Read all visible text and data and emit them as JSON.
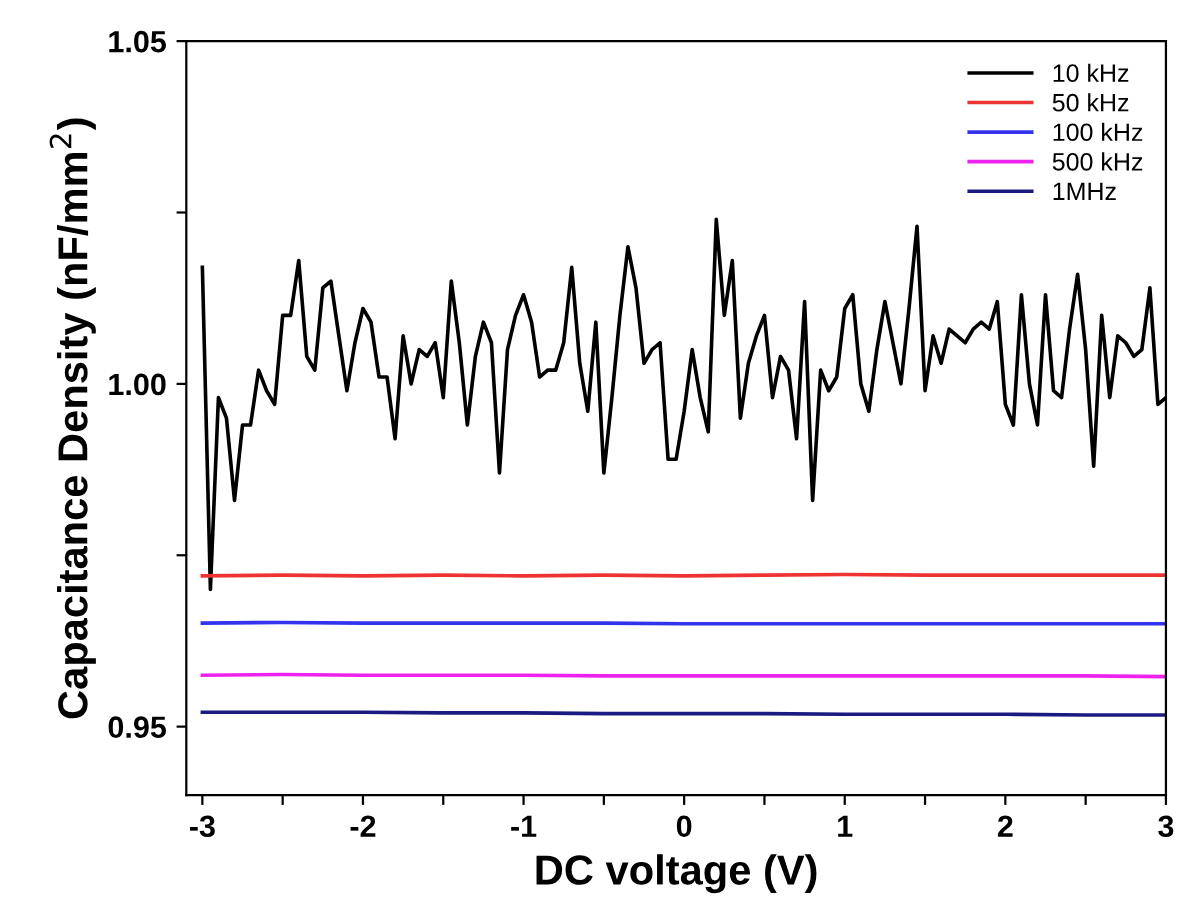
{
  "chart_data": {
    "type": "line",
    "xlabel": "DC voltage (V)",
    "ylabel": "Capacitance Density (nF/mm$^{2}$)",
    "xlim": [
      -3.1,
      3
    ],
    "ylim": [
      0.94,
      1.05
    ],
    "xticks": [
      -3,
      {
        "value": -2.5,
        "label": null
      },
      -2,
      {
        "value": -1.5,
        "label": null
      },
      -1,
      {
        "value": -0.5,
        "label": null
      },
      0,
      {
        "value": 0.5,
        "label": null
      },
      1,
      {
        "value": 1.5,
        "label": null
      },
      2,
      {
        "value": 2.5,
        "label": null
      },
      3
    ],
    "yticks": [
      {
        "value": 0.95,
        "label": "0.95"
      },
      {
        "value": 0.975,
        "label": null
      },
      {
        "value": 1.0,
        "label": "1.00"
      },
      {
        "value": 1.025,
        "label": null
      },
      {
        "value": 1.05,
        "label": "1.05"
      }
    ],
    "legend": "top right",
    "grid": false,
    "marker": "none",
    "line_style": "solid",
    "series": [
      {
        "name": "10 kHz",
        "color": "#000000",
        "x": [
          -3.0,
          -2.95,
          -2.9,
          -2.85,
          -2.8,
          -2.75,
          -2.7,
          -2.65,
          -2.6,
          -2.55,
          -2.5,
          -2.45,
          -2.4,
          -2.35,
          -2.3,
          -2.25,
          -2.2,
          -2.15,
          -2.1,
          -2.05,
          -2.0,
          -1.95,
          -1.9,
          -1.85,
          -1.8,
          -1.75,
          -1.7,
          -1.65,
          -1.6,
          -1.55,
          -1.5,
          -1.45,
          -1.4,
          -1.35,
          -1.3,
          -1.25,
          -1.2,
          -1.15,
          -1.1,
          -1.05,
          -1.0,
          -0.95,
          -0.9,
          -0.85,
          -0.8,
          -0.75,
          -0.7,
          -0.65,
          -0.6,
          -0.55,
          -0.5,
          -0.45,
          -0.4,
          -0.35,
          -0.3,
          -0.25,
          -0.2,
          -0.15,
          -0.1,
          -0.05,
          0.0,
          0.05,
          0.1,
          0.15,
          0.2,
          0.25,
          0.3,
          0.35,
          0.4,
          0.45,
          0.5,
          0.55,
          0.6,
          0.65,
          0.7,
          0.75,
          0.8,
          0.85,
          0.9,
          0.95,
          1.0,
          1.05,
          1.1,
          1.15,
          1.2,
          1.25,
          1.3,
          1.35,
          1.4,
          1.45,
          1.5,
          1.55,
          1.6,
          1.65,
          1.7,
          1.75,
          1.8,
          1.85,
          1.9,
          1.95,
          2.0,
          2.05,
          2.1,
          2.15,
          2.2,
          2.25,
          2.3,
          2.35,
          2.4,
          2.45,
          2.5,
          2.55,
          2.6,
          2.65,
          2.7,
          2.75,
          2.8,
          2.85,
          2.9,
          2.95,
          3.0
        ],
        "values": [
          1.017,
          0.97,
          0.998,
          0.995,
          0.983,
          0.994,
          0.994,
          1.002,
          0.999,
          0.997,
          1.01,
          1.01,
          1.018,
          1.004,
          1.002,
          1.014,
          1.015,
          1.007,
          0.999,
          1.006,
          1.011,
          1.009,
          1.001,
          1.001,
          0.992,
          1.007,
          1.0,
          1.005,
          1.004,
          1.006,
          0.998,
          1.015,
          1.006,
          0.994,
          1.004,
          1.009,
          1.006,
          0.987,
          1.005,
          1.01,
          1.013,
          1.009,
          1.001,
          1.002,
          1.002,
          1.006,
          1.017,
          1.003,
          0.996,
          1.009,
          0.987,
          0.998,
          1.01,
          1.02,
          1.014,
          1.003,
          1.005,
          1.006,
          0.989,
          0.989,
          0.996,
          1.005,
          0.998,
          0.993,
          1.024,
          1.01,
          1.018,
          0.995,
          1.003,
          1.007,
          1.01,
          0.998,
          1.004,
          1.002,
          0.992,
          1.012,
          0.983,
          1.002,
          0.999,
          1.001,
          1.011,
          1.013,
          1.0,
          0.996,
          1.005,
          1.012,
          1.006,
          1.0,
          1.011,
          1.023,
          0.999,
          1.007,
          1.003,
          1.008,
          1.007,
          1.006,
          1.008,
          1.009,
          1.008,
          1.012,
          0.997,
          0.994,
          1.013,
          1.0,
          0.994,
          1.013,
          0.999,
          0.998,
          1.008,
          1.016,
          1.005,
          0.988,
          1.01,
          0.998,
          1.007,
          1.006,
          1.004,
          1.005,
          1.014,
          0.997,
          0.998
        ]
      },
      {
        "name": "50 kHz",
        "color": "#ee3333",
        "x": [
          -3,
          -2.5,
          -2,
          -1.5,
          -1,
          -0.5,
          0,
          0.5,
          1,
          1.5,
          2,
          2.5,
          3
        ],
        "values": [
          0.972,
          0.9721,
          0.972,
          0.9721,
          0.972,
          0.9721,
          0.972,
          0.9721,
          0.9722,
          0.9721,
          0.9721,
          0.9721,
          0.9721
        ]
      },
      {
        "name": "100 kHz",
        "color": "#3333ee",
        "x": [
          -3,
          -2.5,
          -2,
          -1.5,
          -1,
          -0.5,
          0,
          0.5,
          1,
          1.5,
          2,
          2.5,
          3
        ],
        "values": [
          0.9651,
          0.9652,
          0.9651,
          0.9651,
          0.9651,
          0.9651,
          0.965,
          0.965,
          0.965,
          0.965,
          0.965,
          0.965,
          0.965
        ]
      },
      {
        "name": "500 kHz",
        "color": "#ee22ee",
        "x": [
          -3,
          -2.5,
          -2,
          -1.5,
          -1,
          -0.5,
          0,
          0.5,
          1,
          1.5,
          2,
          2.5,
          3
        ],
        "values": [
          0.9575,
          0.9576,
          0.9575,
          0.9575,
          0.9575,
          0.9574,
          0.9574,
          0.9574,
          0.9574,
          0.9574,
          0.9574,
          0.9574,
          0.9573
        ]
      },
      {
        "name": "1MHz",
        "color": "#1a1a80",
        "x": [
          -3,
          -2.5,
          -2,
          -1.5,
          -1,
          -0.5,
          0,
          0.5,
          1,
          1.5,
          2,
          2.5,
          3
        ],
        "values": [
          0.9521,
          0.9521,
          0.9521,
          0.952,
          0.952,
          0.9519,
          0.9519,
          0.9519,
          0.9518,
          0.9518,
          0.9518,
          0.9517,
          0.9517
        ]
      }
    ]
  }
}
